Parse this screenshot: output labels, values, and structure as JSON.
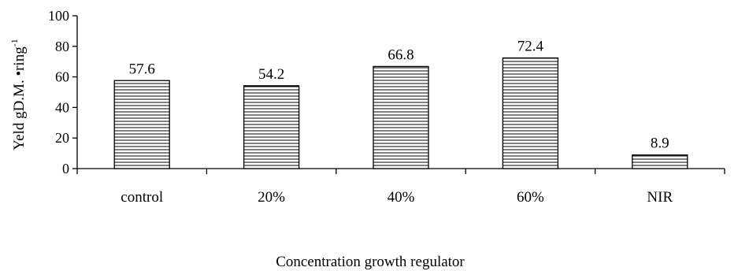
{
  "chart_data": {
    "type": "bar",
    "categories": [
      "control",
      "20%",
      "40%",
      "60%",
      "NIR"
    ],
    "values": [
      57.6,
      54.2,
      66.8,
      72.4,
      8.9
    ],
    "data_labels": [
      "57.6",
      "54.2",
      "66.8",
      "72.4",
      "8.9"
    ],
    "xlabel": "Concentration growth regulator",
    "ylabel": "Yeld  gD.M. •ring",
    "ylabel_superscript": "-1",
    "ylim": [
      0,
      100
    ],
    "yticks": [
      0,
      20,
      40,
      60,
      80,
      100
    ],
    "grid": false,
    "bar_fill": "horizontal-hatch",
    "colors": {
      "bar_stroke": "#000000",
      "hatch": "#000000",
      "background": "#ffffff"
    }
  }
}
